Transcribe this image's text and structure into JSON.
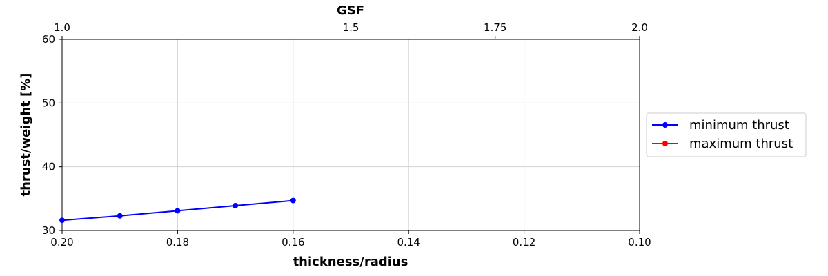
{
  "chart_data": {
    "type": "line",
    "title": "",
    "xlabel": "thickness/radius",
    "ylabel": "thrust/weight [%]",
    "top_xlabel": "GSF",
    "xlim": [
      0.2,
      0.1
    ],
    "ylim": [
      30,
      60
    ],
    "x_ticks": [
      0.2,
      0.18,
      0.16,
      0.14,
      0.12,
      0.1
    ],
    "x_tick_labels": [
      "0.20",
      "0.18",
      "0.16",
      "0.14",
      "0.12",
      "0.10"
    ],
    "y_ticks": [
      30,
      40,
      50,
      60
    ],
    "y_tick_labels": [
      "30",
      "40",
      "50",
      "60"
    ],
    "top_x_ticks": [
      1.0,
      1.5,
      1.75,
      2.0
    ],
    "top_x_tick_labels": [
      "1.0",
      "1.5",
      "1.75",
      "2.0"
    ],
    "grid": true,
    "legend_position": "right",
    "series": [
      {
        "name": "minimum thrust",
        "color": "#0000ff",
        "marker": "circle",
        "x": [
          0.2,
          0.19,
          0.18,
          0.17,
          0.16
        ],
        "y": [
          31.6,
          32.3,
          33.1,
          33.9,
          34.7
        ]
      },
      {
        "name": "maximum thrust",
        "color": "#ff0000",
        "marker": "circle",
        "x": [],
        "y": []
      }
    ]
  }
}
